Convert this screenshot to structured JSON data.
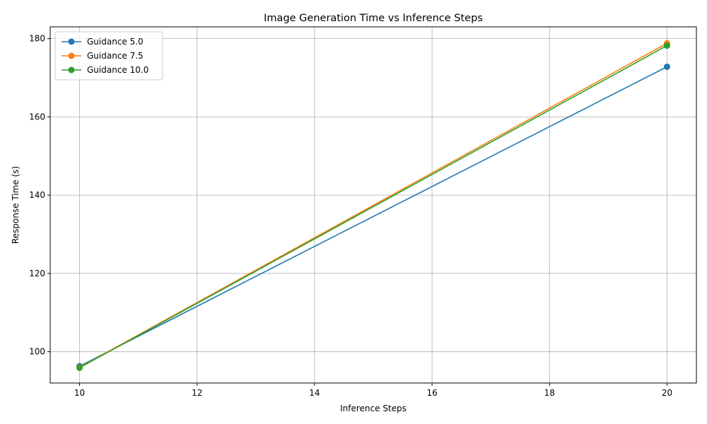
{
  "chart_data": {
    "type": "line",
    "title": "Image Generation Time vs Inference Steps",
    "xlabel": "Inference Steps",
    "ylabel": "Response Time (s)",
    "x": [
      10,
      20
    ],
    "xlim": [
      9.5,
      20.5
    ],
    "ylim": [
      92,
      183
    ],
    "xticks": [
      10,
      12,
      14,
      16,
      18,
      20
    ],
    "yticks": [
      100,
      120,
      140,
      160,
      180
    ],
    "grid": true,
    "legend_position": "top-left",
    "series": [
      {
        "name": "Guidance 5.0",
        "values": [
          96.3,
          172.8
        ],
        "color": "#1f77b4"
      },
      {
        "name": "Guidance 7.5",
        "values": [
          96.0,
          178.8
        ],
        "color": "#ff7f0e"
      },
      {
        "name": "Guidance 10.0",
        "values": [
          95.9,
          178.2
        ],
        "color": "#2ca02c"
      }
    ]
  }
}
